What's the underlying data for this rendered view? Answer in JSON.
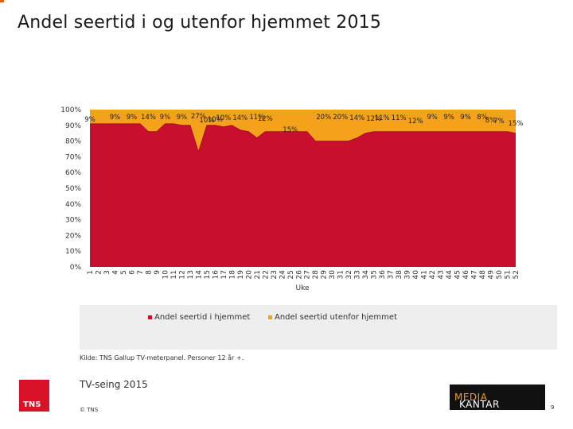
{
  "page": {
    "title": "Andel seertid i og utenfor hjemmet 2015",
    "source": "Kilde: TNS Gallup TV-meterpanel. Personer 12 år +.",
    "subtitle": "TV-seing 2015",
    "copyright": "© TNS",
    "page_number": "9",
    "logo_left": "TNS",
    "logo_right_a": "KANTAR",
    "logo_right_b": "MEDIA"
  },
  "colors": {
    "home": "#c8102e",
    "outside": "#f4a21c",
    "accent": "#e06000"
  },
  "chart_data": {
    "type": "area",
    "stacked": true,
    "percent": true,
    "xlabel": "Uke",
    "ylabel": "",
    "ylim": [
      0,
      100
    ],
    "y_ticks": [
      0,
      10,
      20,
      30,
      40,
      50,
      60,
      70,
      80,
      90,
      100
    ],
    "y_tick_suffix": "%",
    "x": [
      1,
      2,
      3,
      4,
      5,
      6,
      7,
      8,
      9,
      10,
      11,
      12,
      13,
      14,
      15,
      16,
      17,
      18,
      19,
      20,
      21,
      22,
      23,
      24,
      25,
      26,
      27,
      28,
      29,
      30,
      31,
      32,
      33,
      34,
      35,
      36,
      37,
      38,
      39,
      40,
      41,
      42,
      43,
      44,
      45,
      46,
      47,
      48,
      49,
      50,
      51,
      52
    ],
    "legend_position": "bottom",
    "grid": false,
    "series": [
      {
        "name": "Andel seertid i hjemmet",
        "values": [
          91,
          91,
          91,
          91,
          91,
          91,
          91,
          86,
          86,
          91,
          91,
          90,
          90,
          73,
          90,
          90,
          89,
          90,
          87,
          86,
          82,
          86,
          86,
          86,
          86,
          86,
          86,
          80,
          80,
          80,
          80,
          80,
          82,
          85,
          86,
          86,
          86,
          86,
          86,
          86,
          86,
          86,
          86,
          86,
          86,
          86,
          86,
          86,
          86,
          86,
          86,
          85
        ]
      },
      {
        "name": "Andel seertid utenfor hjemmet",
        "values": [
          9,
          9,
          9,
          9,
          9,
          9,
          9,
          14,
          14,
          9,
          9,
          10,
          10,
          27,
          10,
          10,
          11,
          10,
          13,
          14,
          18,
          14,
          14,
          14,
          14,
          14,
          14,
          20,
          20,
          20,
          20,
          20,
          18,
          15,
          14,
          14,
          14,
          14,
          14,
          14,
          14,
          14,
          14,
          14,
          14,
          14,
          14,
          14,
          14,
          14,
          14,
          15
        ]
      }
    ],
    "data_labels": [
      "9%",
      "9%",
      "9%",
      "14%",
      "9%",
      "9%",
      "27%",
      "10%",
      "10%",
      "10%",
      "14%",
      "11%",
      "12%",
      "15%",
      "20%",
      "20%",
      "14%",
      "12%",
      "11%",
      "11%",
      "12%",
      "9%",
      "9%",
      "9%",
      "8%",
      "8%",
      "7%",
      "15%"
    ]
  }
}
